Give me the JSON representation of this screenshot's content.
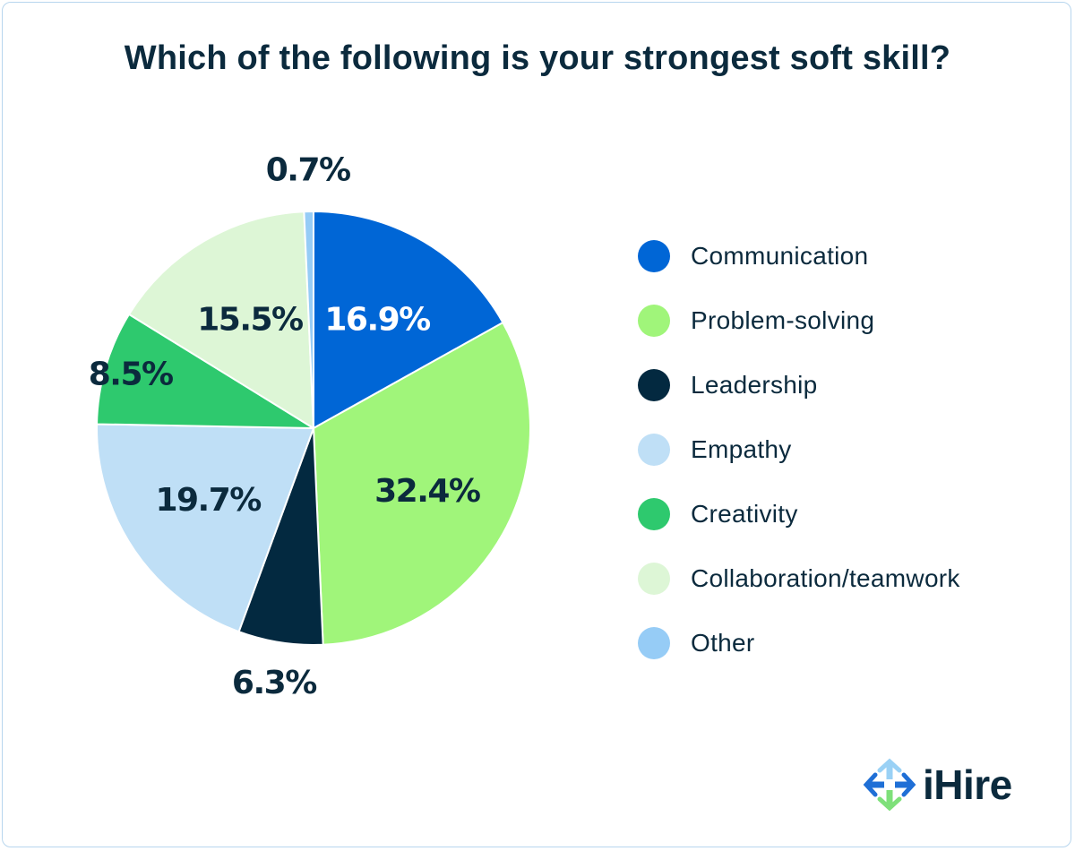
{
  "chart_data": {
    "type": "pie",
    "title": "Which of the following is your strongest soft skill?",
    "slices": [
      {
        "label": "Communication",
        "value": 16.9,
        "display": "16.9%",
        "color": "#0066d6",
        "text_color": "#ffffff"
      },
      {
        "label": "Problem-solving",
        "value": 32.4,
        "display": "32.4%",
        "color": "#a0f57a",
        "text_color": "#0b2a3d"
      },
      {
        "label": "Leadership",
        "value": 6.3,
        "display": "6.3%",
        "color": "#032940",
        "text_color": "#0b2a3d"
      },
      {
        "label": "Empathy",
        "value": 19.7,
        "display": "19.7%",
        "color": "#bfdff6",
        "text_color": "#0b2a3d"
      },
      {
        "label": "Creativity",
        "value": 8.5,
        "display": "8.5%",
        "color": "#2ec96e",
        "text_color": "#0b2a3d"
      },
      {
        "label": "Collaboration/teamwork",
        "value": 15.5,
        "display": "15.5%",
        "color": "#ddf6d6",
        "text_color": "#0b2a3d"
      },
      {
        "label": "Other",
        "value": 0.7,
        "display": "0.7%",
        "color": "#96ccf6",
        "text_color": "#0b2a3d"
      }
    ],
    "legend_position": "right",
    "start_angle": "top",
    "direction": "clockwise"
  },
  "brand": {
    "name": "iHire",
    "text_color": "#0b2a3d",
    "icon_colors": [
      "#1f6fd6",
      "#9ad1f5",
      "#7ee07a"
    ]
  }
}
